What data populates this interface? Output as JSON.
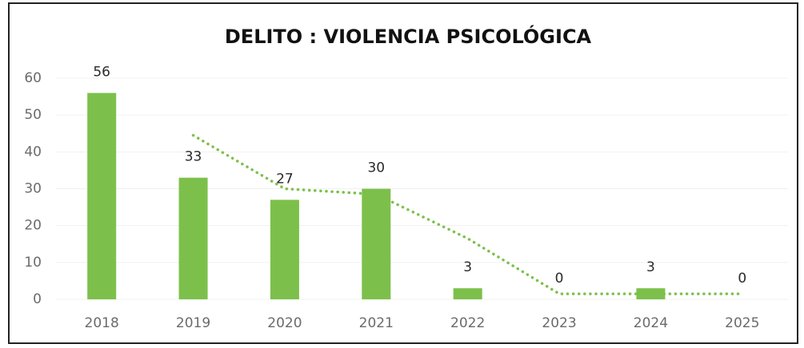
{
  "chart_data": {
    "type": "bar",
    "title": "DELITO : VIOLENCIA PSICOLÓGICA",
    "categories": [
      "2018",
      "2019",
      "2020",
      "2021",
      "2022",
      "2023",
      "2024",
      "2025"
    ],
    "values": [
      56,
      33,
      27,
      30,
      3,
      0,
      3,
      0
    ],
    "color": "#7cc04b",
    "ylim": [
      0,
      60
    ],
    "yticks": [
      0,
      10,
      20,
      30,
      40,
      50,
      60
    ],
    "grid": true,
    "trendline": {
      "type": "moving_average",
      "period": 2,
      "color": "#7cc04b"
    }
  }
}
